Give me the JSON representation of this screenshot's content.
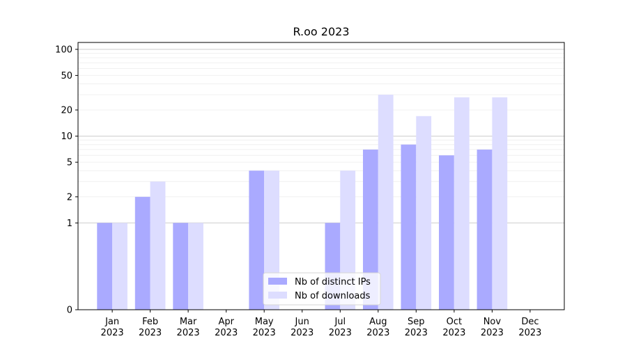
{
  "chart_data": {
    "type": "bar",
    "title": "R.oo 2023",
    "xlabel": "",
    "ylabel": "",
    "y_scale": "symlog",
    "ylim": [
      0,
      120
    ],
    "y_ticks": [
      0,
      1,
      2,
      5,
      10,
      20,
      50,
      100
    ],
    "grid": true,
    "legend_position": "lower-center",
    "categories": [
      "Jan",
      "Feb",
      "Mar",
      "Apr",
      "May",
      "Jun",
      "Jul",
      "Aug",
      "Sep",
      "Oct",
      "Nov",
      "Dec"
    ],
    "category_sublabels": [
      "2023",
      "2023",
      "2023",
      "2023",
      "2023",
      "2023",
      "2023",
      "2023",
      "2023",
      "2023",
      "2023",
      "2023"
    ],
    "series": [
      {
        "name": "Nb of distinct IPs",
        "color": "#aaaaff",
        "values": [
          1,
          2,
          1,
          0,
          4,
          0,
          1,
          7,
          8,
          6,
          7,
          0
        ]
      },
      {
        "name": "Nb of downloads",
        "color": "#ddddff",
        "values": [
          1,
          3,
          1,
          0,
          4,
          0,
          4,
          30,
          17,
          28,
          28,
          0
        ]
      }
    ]
  }
}
